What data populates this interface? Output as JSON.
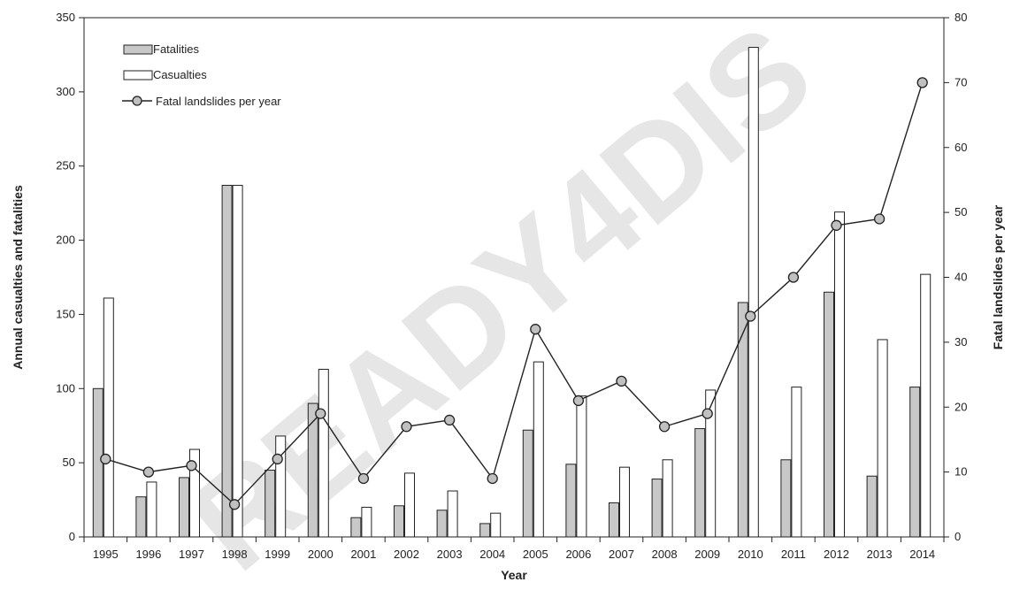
{
  "chart_data": {
    "type": "bar",
    "xlabel": "Year",
    "ylabel": "Annual casualties and fatalities",
    "y2label": "Fatal landslides per year",
    "ylim": [
      0,
      350
    ],
    "y2lim": [
      0,
      80
    ],
    "yticks": [
      0,
      50,
      100,
      150,
      200,
      250,
      300,
      350
    ],
    "y2ticks": [
      0,
      10,
      20,
      30,
      40,
      50,
      60,
      70,
      80
    ],
    "grid": false,
    "legend_position": "top-left",
    "categories": [
      "1995",
      "1996",
      "1997",
      "1998",
      "1999",
      "2000",
      "2001",
      "2002",
      "2003",
      "2004",
      "2005",
      "2006",
      "2007",
      "2008",
      "2009",
      "2010",
      "2011",
      "2012",
      "2013",
      "2014"
    ],
    "series": [
      {
        "name": "Fatalities",
        "kind": "bar",
        "axis": "left",
        "color": "#c8c8c8",
        "values": [
          100,
          27,
          40,
          237,
          45,
          90,
          13,
          21,
          18,
          9,
          72,
          49,
          23,
          39,
          73,
          158,
          52,
          165,
          41,
          101
        ]
      },
      {
        "name": "Casualties",
        "kind": "bar",
        "axis": "left",
        "color": "#ffffff",
        "values": [
          161,
          37,
          59,
          237,
          68,
          113,
          20,
          43,
          31,
          16,
          118,
          95,
          47,
          52,
          99,
          330,
          101,
          219,
          133,
          177
        ]
      },
      {
        "name": "Fatal landslides per year",
        "kind": "line",
        "axis": "right",
        "color": "#c0c0c0",
        "values": [
          12,
          10,
          11,
          5,
          12,
          19,
          9,
          17,
          18,
          9,
          32,
          21,
          24,
          17,
          19,
          34,
          40,
          48,
          49,
          70
        ]
      }
    ]
  },
  "watermark": {
    "text": "READY4DIS",
    "color": "#c8c8c8"
  }
}
